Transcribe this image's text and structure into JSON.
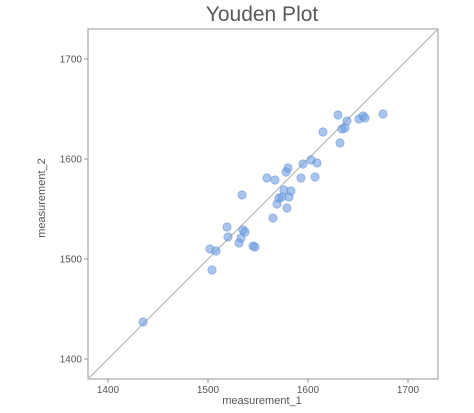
{
  "chart_data": {
    "type": "scatter",
    "title": "Youden Plot",
    "xlabel": "measurement_1",
    "ylabel": "measurement_2",
    "xlim": [
      1380,
      1730
    ],
    "ylim": [
      1380,
      1730
    ],
    "x_ticks": [
      1400,
      1500,
      1600,
      1700
    ],
    "y_ticks": [
      1400,
      1500,
      1600,
      1700
    ],
    "grid": false,
    "legend": "none",
    "reference_line": "y = x",
    "colors": {
      "point_fill": "#6b9be0",
      "point_stroke": "#4a7cc9",
      "reference_line": "#bdbdbd",
      "frame": "#999999",
      "text": "#555555"
    },
    "points": [
      {
        "x": 1435,
        "y": 1437
      },
      {
        "x": 1502,
        "y": 1510
      },
      {
        "x": 1504,
        "y": 1489
      },
      {
        "x": 1508,
        "y": 1508
      },
      {
        "x": 1519,
        "y": 1532
      },
      {
        "x": 1520,
        "y": 1522
      },
      {
        "x": 1531,
        "y": 1516
      },
      {
        "x": 1533,
        "y": 1521
      },
      {
        "x": 1535,
        "y": 1529
      },
      {
        "x": 1537,
        "y": 1527
      },
      {
        "x": 1534,
        "y": 1564
      },
      {
        "x": 1545,
        "y": 1513
      },
      {
        "x": 1547,
        "y": 1512
      },
      {
        "x": 1559,
        "y": 1581
      },
      {
        "x": 1565,
        "y": 1541
      },
      {
        "x": 1567,
        "y": 1579
      },
      {
        "x": 1569,
        "y": 1555
      },
      {
        "x": 1571,
        "y": 1561
      },
      {
        "x": 1574,
        "y": 1562
      },
      {
        "x": 1576,
        "y": 1569
      },
      {
        "x": 1578,
        "y": 1587
      },
      {
        "x": 1580,
        "y": 1591
      },
      {
        "x": 1579,
        "y": 1551
      },
      {
        "x": 1581,
        "y": 1562
      },
      {
        "x": 1583,
        "y": 1568
      },
      {
        "x": 1593,
        "y": 1581
      },
      {
        "x": 1595,
        "y": 1595
      },
      {
        "x": 1603,
        "y": 1599
      },
      {
        "x": 1607,
        "y": 1582
      },
      {
        "x": 1609,
        "y": 1596
      },
      {
        "x": 1615,
        "y": 1627
      },
      {
        "x": 1630,
        "y": 1644
      },
      {
        "x": 1632,
        "y": 1616
      },
      {
        "x": 1634,
        "y": 1630
      },
      {
        "x": 1637,
        "y": 1631
      },
      {
        "x": 1639,
        "y": 1638
      },
      {
        "x": 1651,
        "y": 1640
      },
      {
        "x": 1655,
        "y": 1643
      },
      {
        "x": 1657,
        "y": 1641
      },
      {
        "x": 1675,
        "y": 1645
      }
    ]
  }
}
